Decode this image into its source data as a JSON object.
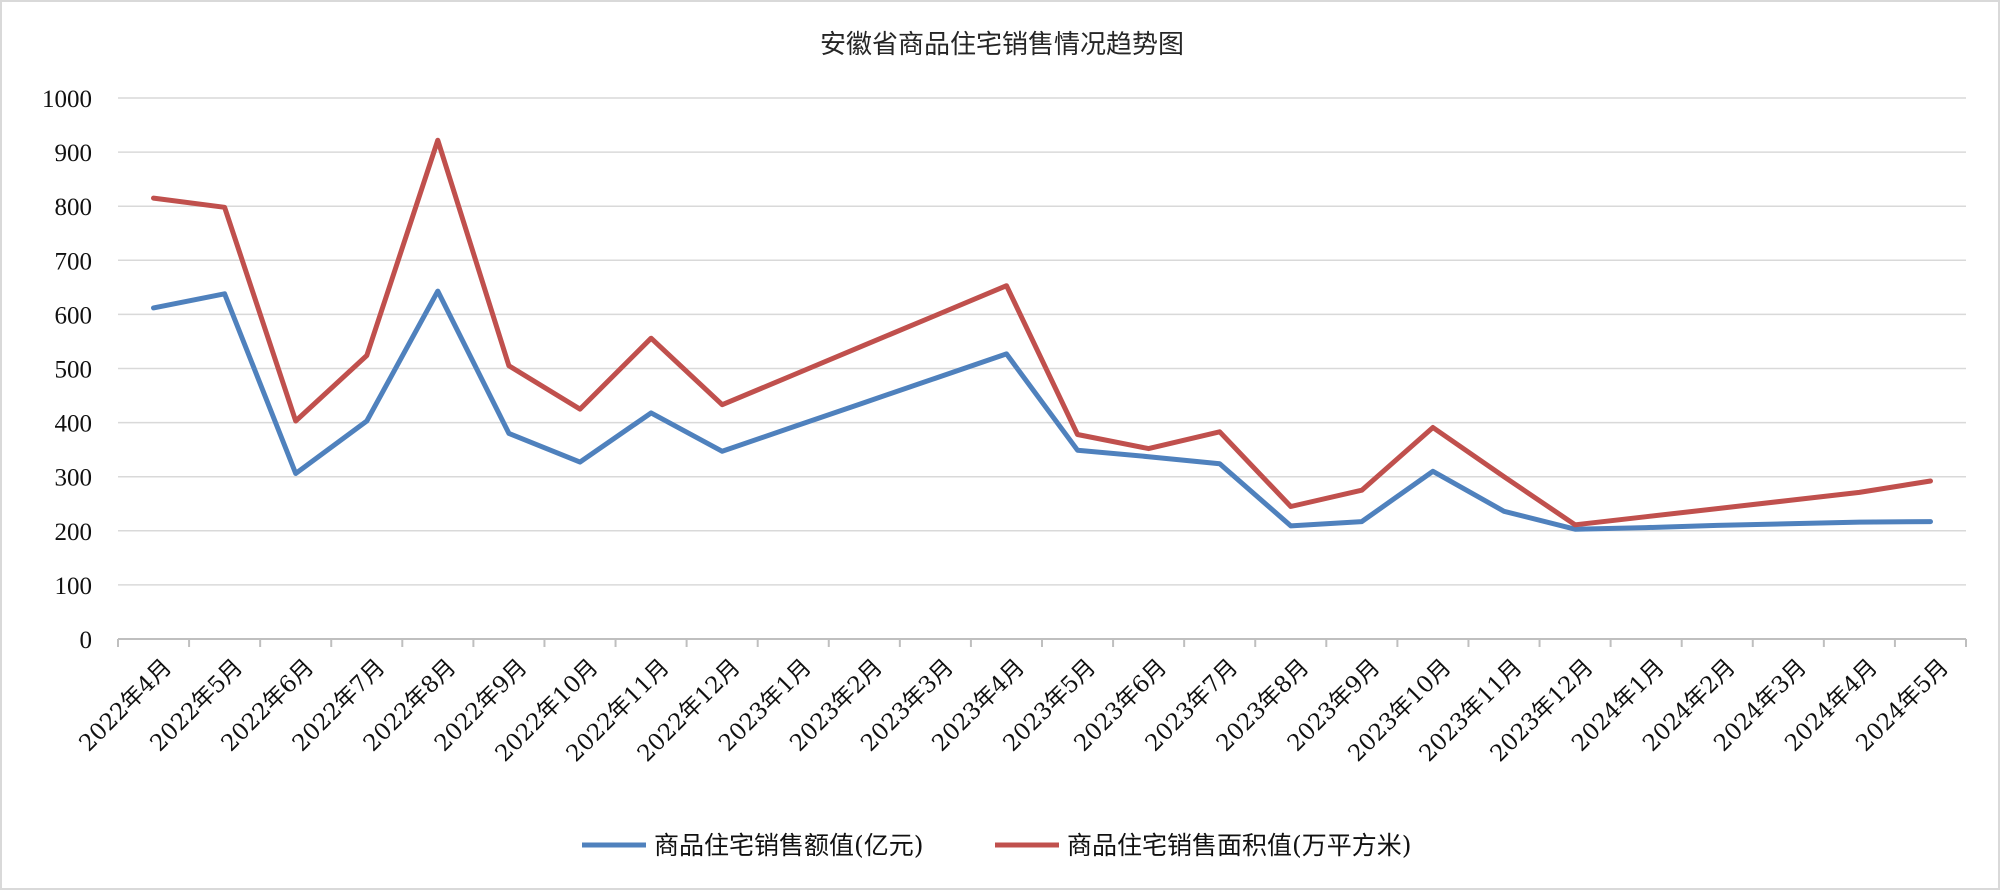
{
  "chart_data": {
    "type": "line",
    "title": "安徽省商品住宅销售情况趋势图",
    "xlabel": "",
    "ylabel": "",
    "ylim": [
      0,
      1000
    ],
    "yticks": [
      "0",
      "100",
      "200",
      "300",
      "400",
      "500",
      "600",
      "700",
      "800",
      "900",
      "1000"
    ],
    "grid": true,
    "legend_position": "bottom",
    "categories": [
      "2022年4月",
      "2022年5月",
      "2022年6月",
      "2022年7月",
      "2022年8月",
      "2022年9月",
      "2022年10月",
      "2022年11月",
      "2022年12月",
      "2023年1月",
      "2023年2月",
      "2023年3月",
      "2023年4月",
      "2023年5月",
      "2023年6月",
      "2023年7月",
      "2023年8月",
      "2023年9月",
      "2023年10月",
      "2023年11月",
      "2023年12月",
      "2024年1月",
      "2024年2月",
      "2024年3月",
      "2024年4月",
      "2024年5月"
    ],
    "series": [
      {
        "name": "商品住宅销售额值(亿元)",
        "color": "#4f81bd",
        "values": [
          612,
          638,
          306,
          403,
          643,
          380,
          327,
          418,
          347,
          392,
          437,
          482,
          527,
          349,
          337,
          324,
          209,
          217,
          310,
          236,
          203,
          206,
          210,
          213,
          216,
          217
        ]
      },
      {
        "name": "商品住宅销售面积值(万平方米)",
        "color": "#c0504d",
        "values": [
          815,
          798,
          403,
          524,
          922,
          505,
          425,
          556,
          433,
          488,
          543,
          598,
          653,
          378,
          352,
          383,
          245,
          275,
          391,
          300,
          211,
          226,
          241,
          256,
          271,
          292
        ]
      }
    ]
  }
}
